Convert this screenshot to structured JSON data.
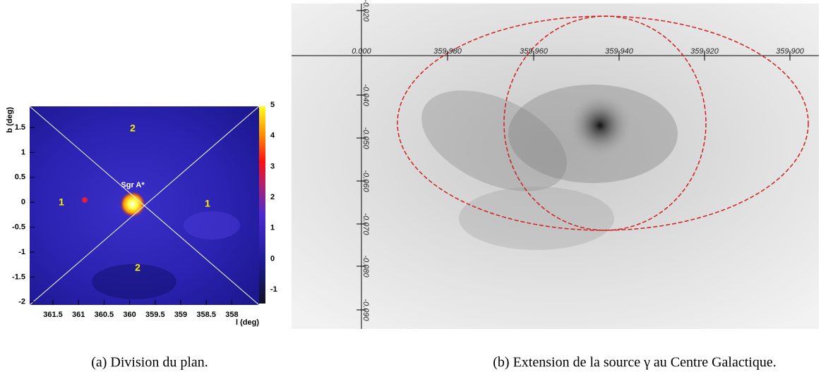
{
  "panel_a": {
    "y_label": "b (deg)",
    "x_label": "l (deg)",
    "x_ticks": [
      "361.5",
      "361",
      "360.5",
      "360",
      "359.5",
      "359",
      "358.5",
      "358"
    ],
    "y_ticks": [
      "1.5",
      "1",
      "0.5",
      "0",
      "-0.5",
      "-1",
      "-1.5",
      "-2"
    ],
    "colorbar_ticks": [
      "5",
      "4",
      "3",
      "2",
      "1",
      "0",
      "-1"
    ],
    "regions": [
      "2",
      "1",
      "1",
      "2"
    ],
    "source": "Sgr A*",
    "caption": "(a) Division du plan."
  },
  "panel_b": {
    "x_ticks": [
      "0.000",
      "359.980",
      "359.960",
      "359.940",
      "359.920",
      "359.900"
    ],
    "y_ticks": [
      "-0.020",
      "-0.040",
      "-0.050",
      "-0.060",
      "-0.070",
      "-0.080",
      "-0.090"
    ],
    "caption": "(b) Extension de la source γ au Centre Galactique."
  }
}
